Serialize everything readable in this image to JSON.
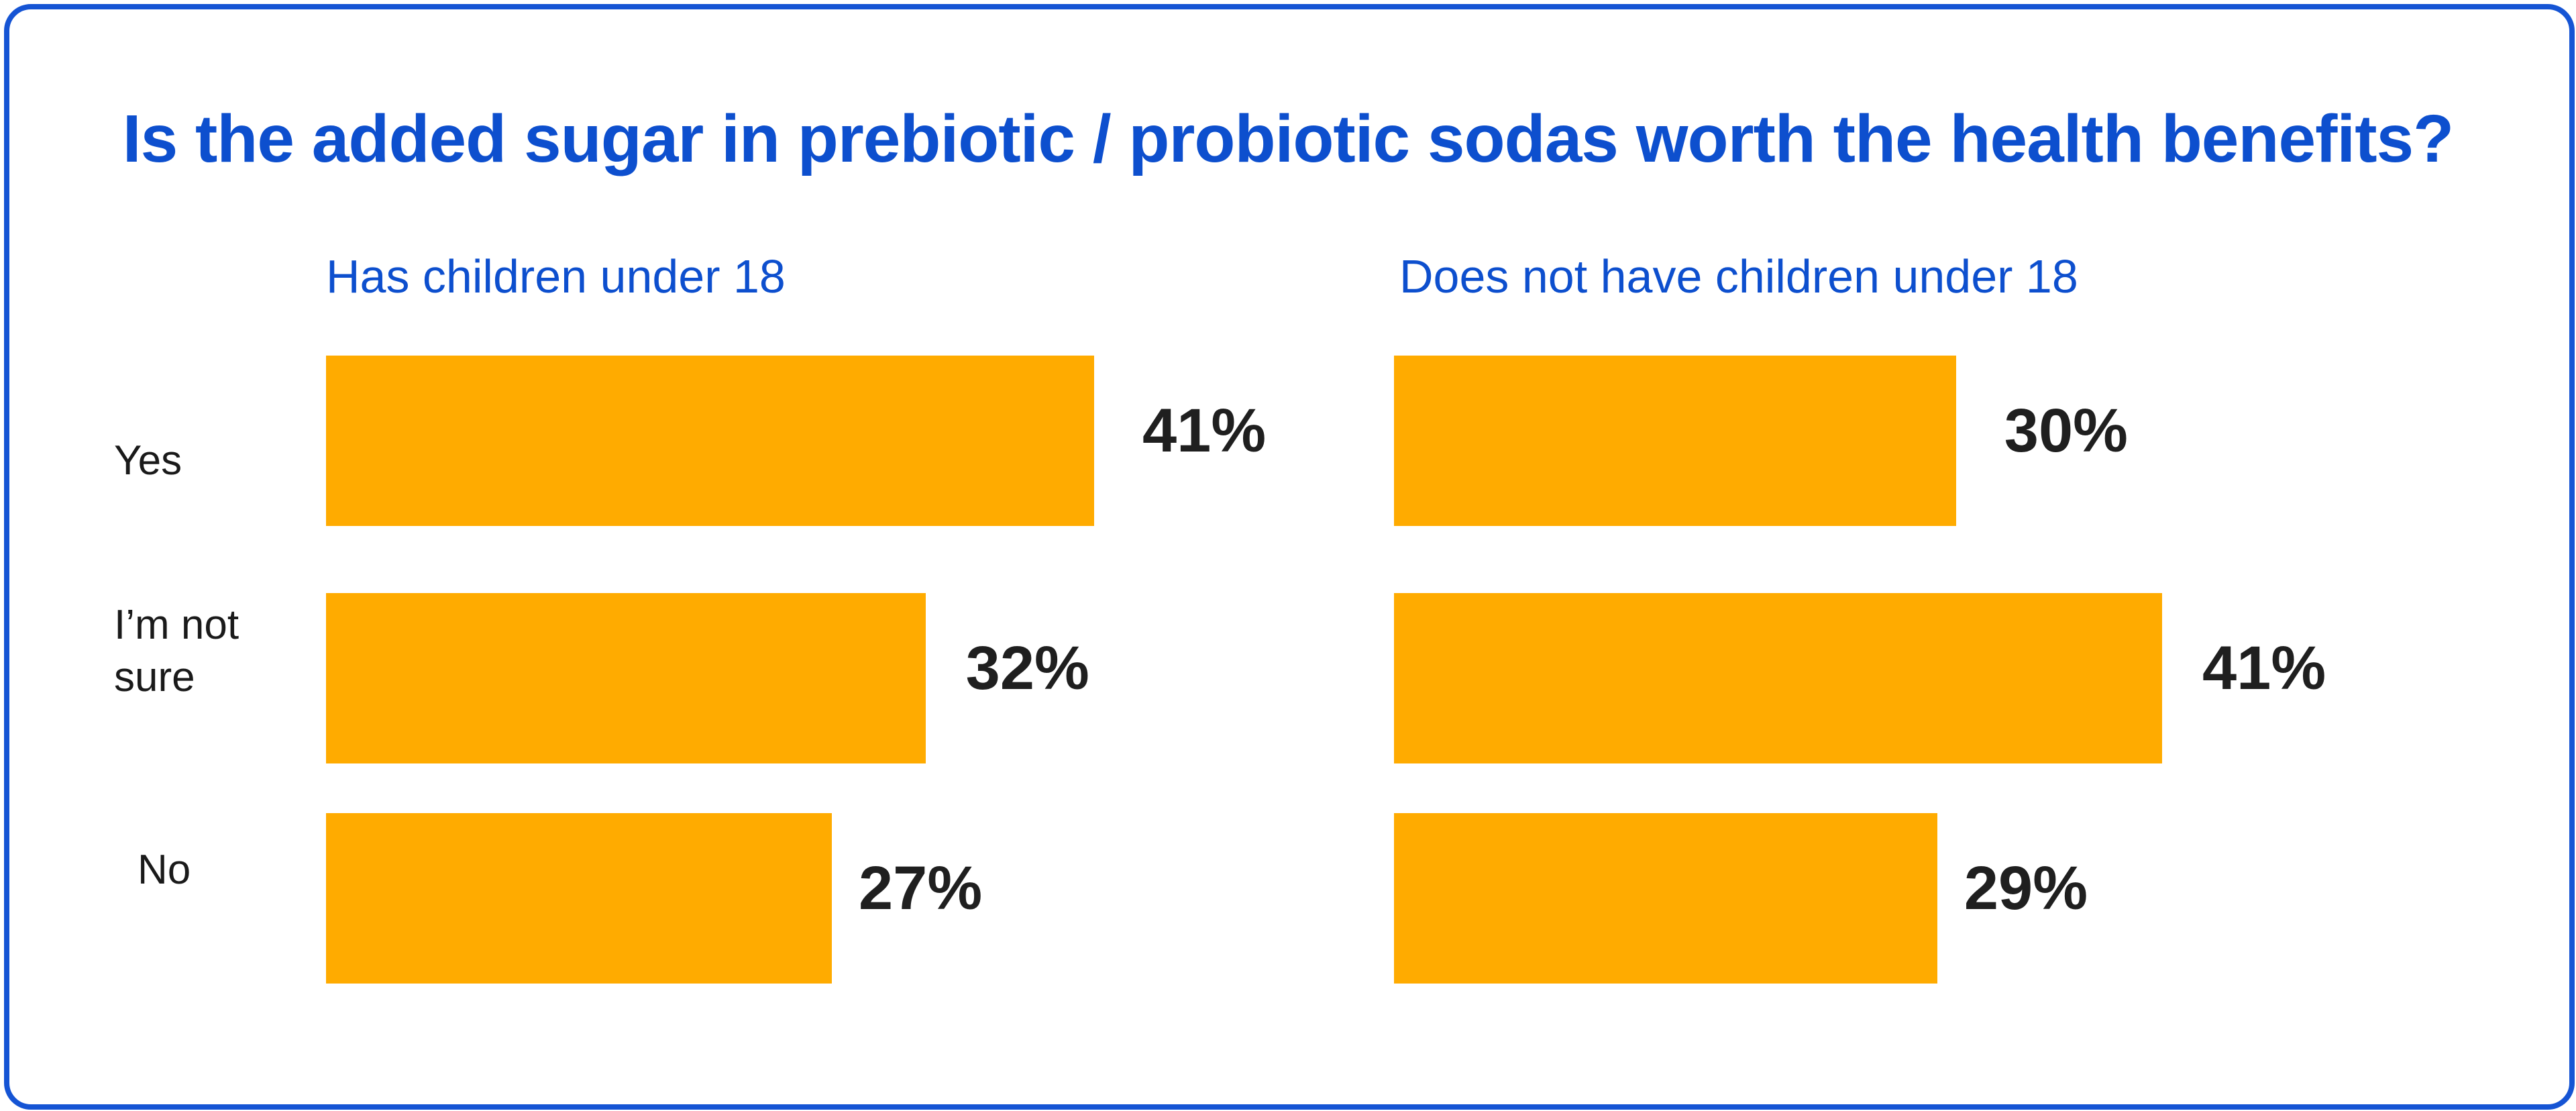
{
  "chart_data": {
    "type": "bar",
    "orientation": "horizontal",
    "title": "Is the added sugar in prebiotic / probiotic sodas worth the health benefits?",
    "categories": [
      "Yes",
      "I’m not sure",
      "No"
    ],
    "category_lines": [
      [
        "Yes"
      ],
      [
        "I’m not",
        "sure"
      ],
      [
        "No"
      ]
    ],
    "series": [
      {
        "name": "Has children under 18",
        "values": [
          41,
          32,
          27
        ],
        "labels": [
          "41%",
          "32%",
          "27%"
        ]
      },
      {
        "name": "Does not have children under 18",
        "values": [
          30,
          41,
          29
        ],
        "labels": [
          "30%",
          "41%",
          "29%"
        ]
      }
    ],
    "unit": "%",
    "bar_color": "#ffab00",
    "title_color": "#0d4fce",
    "border_color": "#1554d4",
    "grid": false,
    "legend": "none"
  }
}
